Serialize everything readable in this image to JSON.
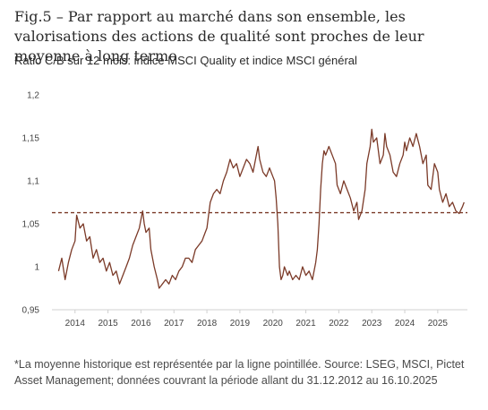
{
  "title": "Fig.5 – Par rapport au marché dans son ensemble, les valorisations des actions de qualité sont proches de leur moyenne à long terme",
  "subtitle": "Ratio C/B sur 12 mois: indice MSCI Quality et indice MSCI général",
  "footnote": "*La moyenne historique est représentée par la ligne pointillée. Source: LSEG, MSCI, Pictet Asset Management; données couvrant la période allant du 31.12.2012 au 16.10.2025",
  "colors": {
    "line": "#7b3a28",
    "average": "#7b3a28",
    "axis": "#d0d0d0",
    "text": "#444444"
  },
  "chart_data": {
    "type": "line",
    "title": "",
    "xlabel": "",
    "ylabel": "",
    "ylim": [
      0.95,
      1.2
    ],
    "xlim": [
      2013.3,
      2025.9
    ],
    "yticks": [
      0.95,
      1,
      1.05,
      1.1,
      1.15,
      1.2
    ],
    "ytick_labels": [
      "0,95",
      "1",
      "1,05",
      "1,1",
      "1,15",
      "1,2"
    ],
    "xtick_labels": [
      "2014",
      "2015",
      "2016",
      "2017",
      "2018",
      "2019",
      "2020",
      "2021",
      "2022",
      "2023",
      "2024",
      "2025"
    ],
    "xtick_positions": [
      2014,
      2015,
      2016,
      2017,
      2018,
      2019,
      2020,
      2021,
      2022,
      2023,
      2024,
      2025
    ],
    "grid": false,
    "legend": "none",
    "average_line": 1.063,
    "series": [
      {
        "values": [
          [
            2013.5,
            0.995
          ],
          [
            2013.6,
            1.01
          ],
          [
            2013.7,
            0.985
          ],
          [
            2013.8,
            1.005
          ],
          [
            2013.9,
            1.02
          ],
          [
            2014.0,
            1.03
          ],
          [
            2014.05,
            1.06
          ],
          [
            2014.15,
            1.045
          ],
          [
            2014.25,
            1.05
          ],
          [
            2014.35,
            1.03
          ],
          [
            2014.45,
            1.035
          ],
          [
            2014.55,
            1.01
          ],
          [
            2014.65,
            1.02
          ],
          [
            2014.75,
            1.005
          ],
          [
            2014.85,
            1.01
          ],
          [
            2014.95,
            0.995
          ],
          [
            2015.05,
            1.005
          ],
          [
            2015.15,
            0.99
          ],
          [
            2015.25,
            0.995
          ],
          [
            2015.35,
            0.98
          ],
          [
            2015.45,
            0.99
          ],
          [
            2015.55,
            1.0
          ],
          [
            2015.65,
            1.01
          ],
          [
            2015.75,
            1.025
          ],
          [
            2015.85,
            1.035
          ],
          [
            2015.95,
            1.045
          ],
          [
            2016.0,
            1.055
          ],
          [
            2016.05,
            1.065
          ],
          [
            2016.1,
            1.05
          ],
          [
            2016.15,
            1.04
          ],
          [
            2016.25,
            1.045
          ],
          [
            2016.3,
            1.02
          ],
          [
            2016.4,
            1.0
          ],
          [
            2016.5,
            0.985
          ],
          [
            2016.55,
            0.975
          ],
          [
            2016.65,
            0.98
          ],
          [
            2016.75,
            0.985
          ],
          [
            2016.85,
            0.98
          ],
          [
            2016.95,
            0.99
          ],
          [
            2017.05,
            0.985
          ],
          [
            2017.15,
            0.995
          ],
          [
            2017.25,
            1.0
          ],
          [
            2017.35,
            1.01
          ],
          [
            2017.45,
            1.01
          ],
          [
            2017.55,
            1.005
          ],
          [
            2017.65,
            1.02
          ],
          [
            2017.75,
            1.025
          ],
          [
            2017.85,
            1.03
          ],
          [
            2017.95,
            1.04
          ],
          [
            2018.0,
            1.045
          ],
          [
            2018.05,
            1.06
          ],
          [
            2018.1,
            1.075
          ],
          [
            2018.2,
            1.085
          ],
          [
            2018.3,
            1.09
          ],
          [
            2018.4,
            1.085
          ],
          [
            2018.5,
            1.1
          ],
          [
            2018.6,
            1.11
          ],
          [
            2018.7,
            1.125
          ],
          [
            2018.8,
            1.115
          ],
          [
            2018.9,
            1.12
          ],
          [
            2019.0,
            1.105
          ],
          [
            2019.1,
            1.115
          ],
          [
            2019.2,
            1.125
          ],
          [
            2019.3,
            1.12
          ],
          [
            2019.4,
            1.11
          ],
          [
            2019.5,
            1.13
          ],
          [
            2019.55,
            1.14
          ],
          [
            2019.6,
            1.125
          ],
          [
            2019.7,
            1.11
          ],
          [
            2019.8,
            1.105
          ],
          [
            2019.9,
            1.115
          ],
          [
            2020.0,
            1.105
          ],
          [
            2020.05,
            1.1
          ],
          [
            2020.1,
            1.08
          ],
          [
            2020.15,
            1.05
          ],
          [
            2020.2,
            1.0
          ],
          [
            2020.25,
            0.985
          ],
          [
            2020.3,
            0.99
          ],
          [
            2020.35,
            1.0
          ],
          [
            2020.45,
            0.99
          ],
          [
            2020.5,
            0.995
          ],
          [
            2020.6,
            0.985
          ],
          [
            2020.7,
            0.99
          ],
          [
            2020.8,
            0.985
          ],
          [
            2020.9,
            1.0
          ],
          [
            2021.0,
            0.99
          ],
          [
            2021.1,
            0.995
          ],
          [
            2021.2,
            0.985
          ],
          [
            2021.3,
            1.005
          ],
          [
            2021.35,
            1.02
          ],
          [
            2021.4,
            1.05
          ],
          [
            2021.45,
            1.09
          ],
          [
            2021.5,
            1.12
          ],
          [
            2021.55,
            1.135
          ],
          [
            2021.6,
            1.13
          ],
          [
            2021.7,
            1.14
          ],
          [
            2021.8,
            1.13
          ],
          [
            2021.9,
            1.12
          ],
          [
            2021.95,
            1.095
          ],
          [
            2022.0,
            1.09
          ],
          [
            2022.05,
            1.085
          ],
          [
            2022.15,
            1.1
          ],
          [
            2022.25,
            1.09
          ],
          [
            2022.35,
            1.08
          ],
          [
            2022.45,
            1.065
          ],
          [
            2022.55,
            1.075
          ],
          [
            2022.6,
            1.055
          ],
          [
            2022.7,
            1.065
          ],
          [
            2022.8,
            1.09
          ],
          [
            2022.85,
            1.12
          ],
          [
            2022.95,
            1.14
          ],
          [
            2023.0,
            1.16
          ],
          [
            2023.05,
            1.145
          ],
          [
            2023.15,
            1.15
          ],
          [
            2023.25,
            1.12
          ],
          [
            2023.35,
            1.13
          ],
          [
            2023.4,
            1.155
          ],
          [
            2023.45,
            1.14
          ],
          [
            2023.55,
            1.13
          ],
          [
            2023.65,
            1.11
          ],
          [
            2023.75,
            1.105
          ],
          [
            2023.85,
            1.12
          ],
          [
            2023.95,
            1.13
          ],
          [
            2024.0,
            1.145
          ],
          [
            2024.05,
            1.135
          ],
          [
            2024.15,
            1.15
          ],
          [
            2024.25,
            1.14
          ],
          [
            2024.35,
            1.155
          ],
          [
            2024.45,
            1.14
          ],
          [
            2024.55,
            1.12
          ],
          [
            2024.65,
            1.13
          ],
          [
            2024.7,
            1.095
          ],
          [
            2024.8,
            1.09
          ],
          [
            2024.9,
            1.12
          ],
          [
            2025.0,
            1.11
          ],
          [
            2025.05,
            1.09
          ],
          [
            2025.15,
            1.075
          ],
          [
            2025.25,
            1.085
          ],
          [
            2025.35,
            1.07
          ],
          [
            2025.45,
            1.075
          ],
          [
            2025.55,
            1.065
          ],
          [
            2025.65,
            1.062
          ],
          [
            2025.75,
            1.07
          ],
          [
            2025.8,
            1.075
          ]
        ]
      }
    ]
  }
}
